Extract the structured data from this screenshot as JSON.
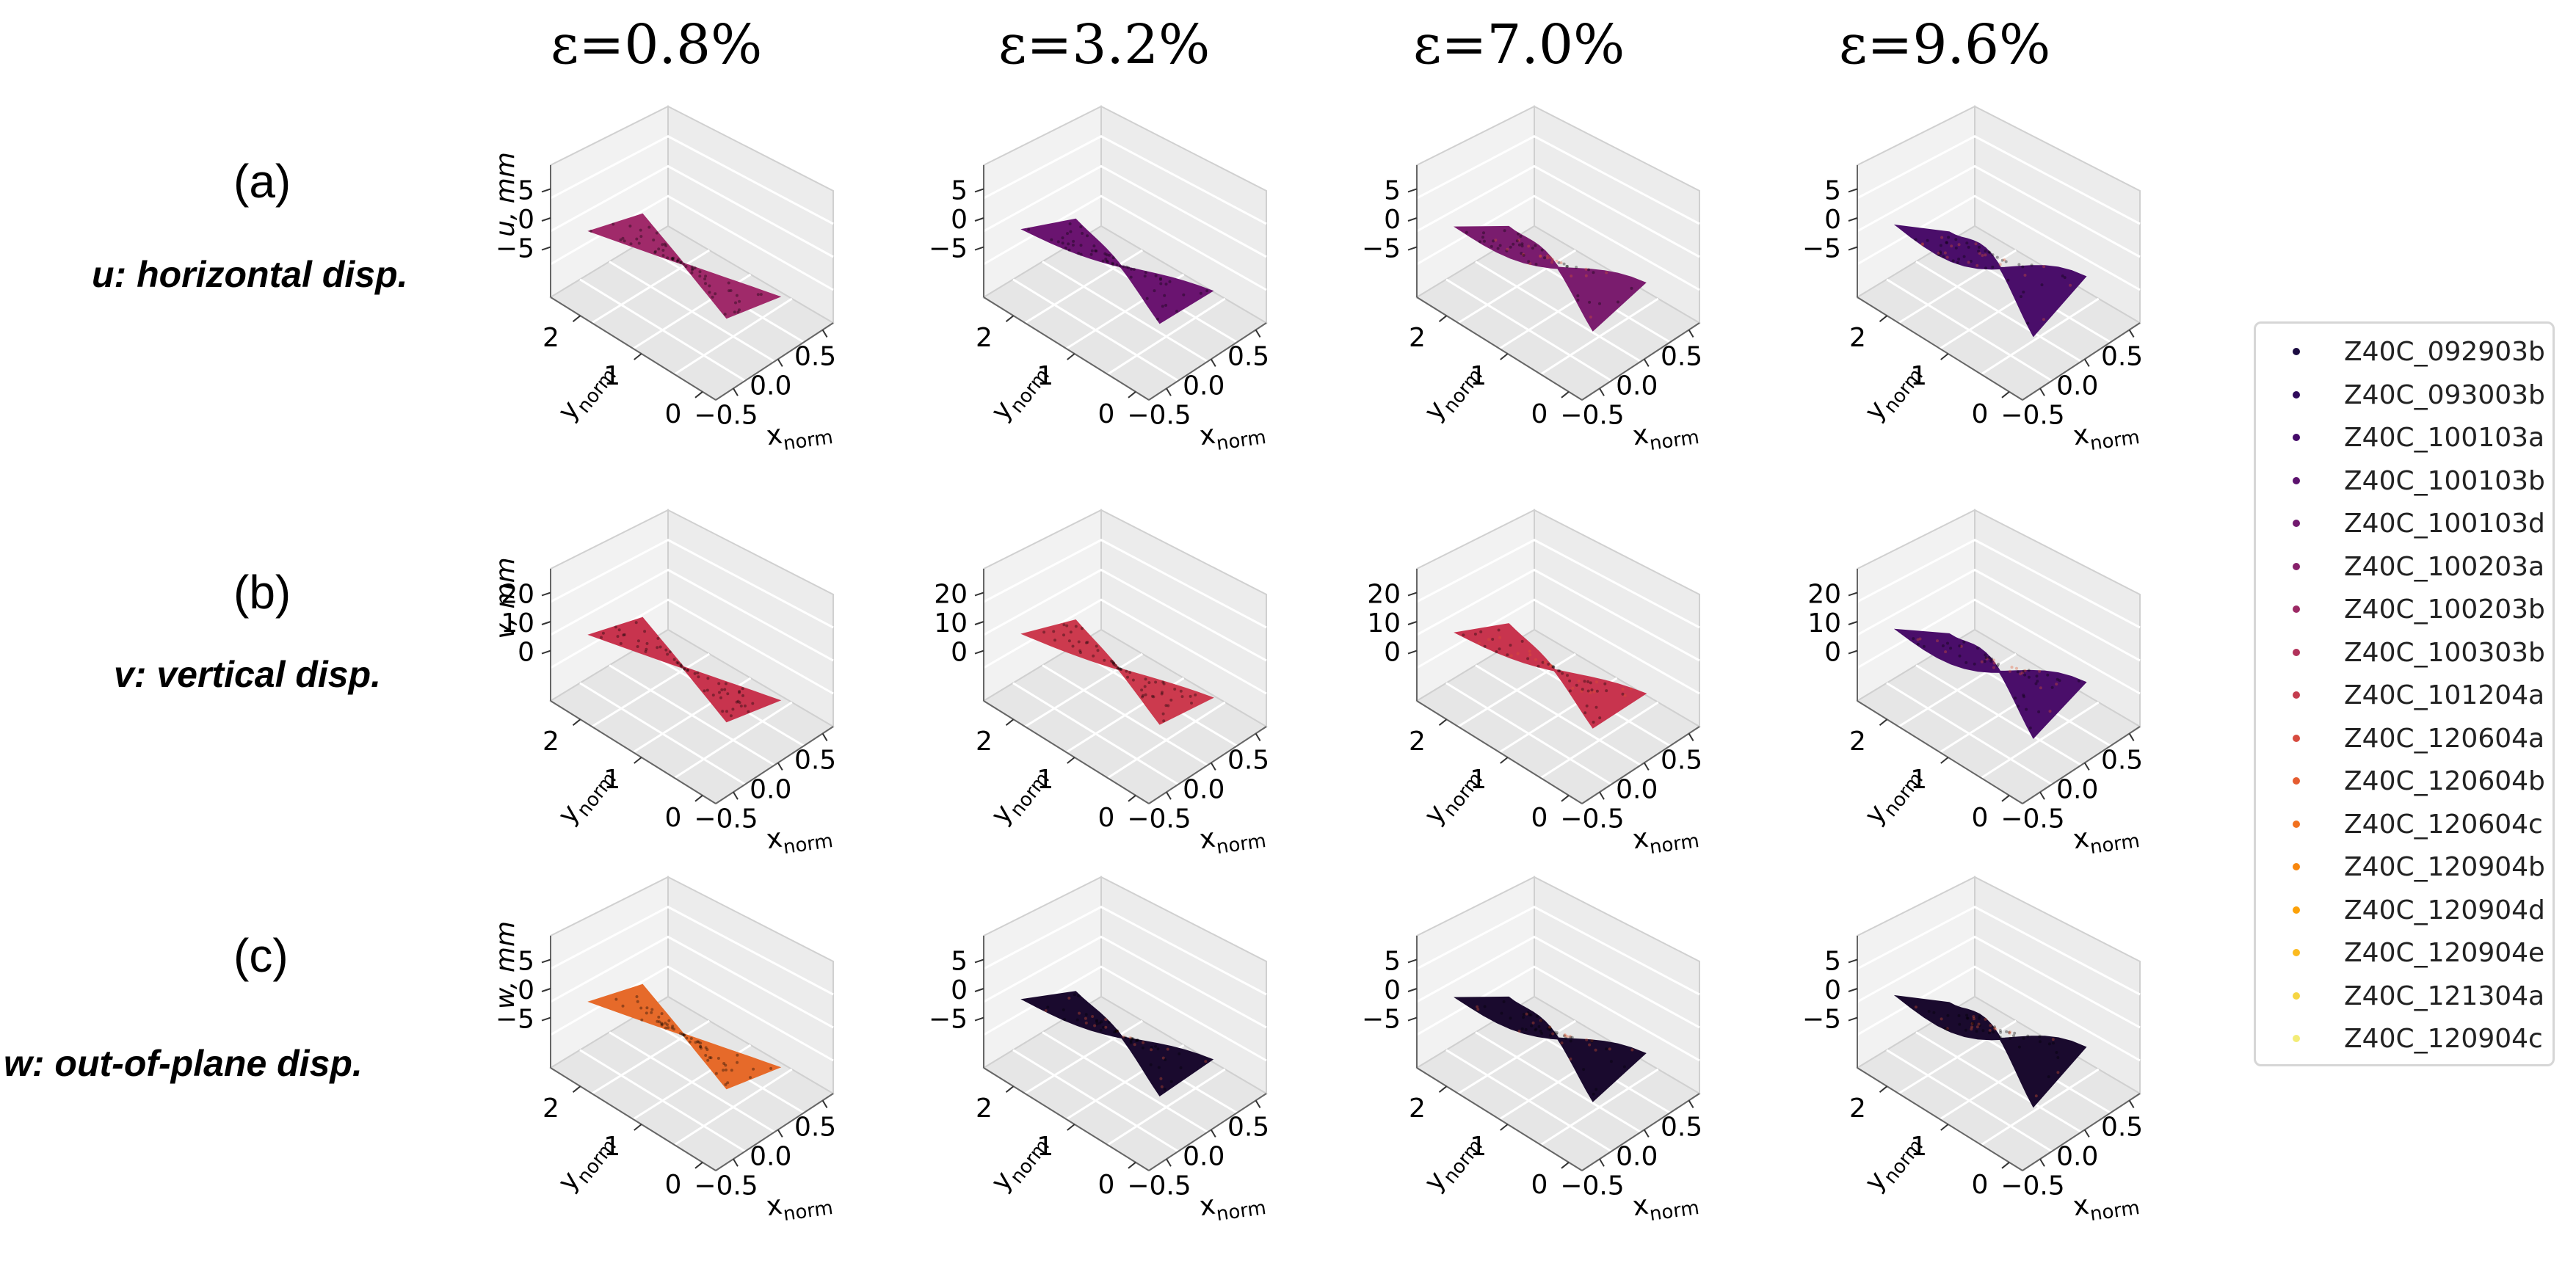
{
  "chart_data": {
    "type": "scatter",
    "title": "",
    "column_titles": [
      "ε=0.8%",
      "ε=3.2%",
      "ε=7.0%",
      "ε=9.6%"
    ],
    "strain_percent": [
      0.8,
      3.2,
      7.0,
      9.6
    ],
    "rows": [
      {
        "letter": "(a)",
        "description": "u: horizontal disp.",
        "zlabel": "u, mm",
        "zticks": [
          "5",
          "0",
          "−5"
        ],
        "zlim": [
          -7,
          7
        ]
      },
      {
        "letter": "(b)",
        "description": "v: vertical disp.",
        "zlabel": "v, mm",
        "zticks": [
          "20",
          "10",
          "0"
        ],
        "zlim": [
          -2,
          22
        ]
      },
      {
        "letter": "(c)",
        "description": "w: out-of-plane disp.",
        "zlabel": "w, mm",
        "zticks": [
          "5",
          "0",
          "−5"
        ],
        "zlim": [
          -7,
          7
        ]
      }
    ],
    "xlabel": "x",
    "xlabel_sub": "norm",
    "xticks": [
      "−0.5",
      "0.0",
      "0.5"
    ],
    "xlim": [
      -0.6,
      0.6
    ],
    "ylabel": "y",
    "ylabel_sub": "norm",
    "yticks": [
      "0",
      "1",
      "2"
    ],
    "ylim": [
      0,
      2.6
    ],
    "legend_position": "right",
    "series": [
      {
        "name": "Z40C_092903b",
        "color": "#1b0c41"
      },
      {
        "name": "Z40C_093003b",
        "color": "#2f0a5b"
      },
      {
        "name": "Z40C_100103a",
        "color": "#450a69"
      },
      {
        "name": "Z40C_100103b",
        "color": "#5c126e"
      },
      {
        "name": "Z40C_100103d",
        "color": "#71196e"
      },
      {
        "name": "Z40C_100203a",
        "color": "#87216b"
      },
      {
        "name": "Z40C_100203b",
        "color": "#9c2964"
      },
      {
        "name": "Z40C_100303b",
        "color": "#b1325a"
      },
      {
        "name": "Z40C_101204a",
        "color": "#c43c4e"
      },
      {
        "name": "Z40C_120604a",
        "color": "#d74b3f"
      },
      {
        "name": "Z40C_120604b",
        "color": "#e55c30"
      },
      {
        "name": "Z40C_120604c",
        "color": "#f1711f"
      },
      {
        "name": "Z40C_120904b",
        "color": "#f8870e"
      },
      {
        "name": "Z40C_120904d",
        "color": "#fca108"
      },
      {
        "name": "Z40C_120904e",
        "color": "#fbba1f"
      },
      {
        "name": "Z40C_121304a",
        "color": "#f6d543"
      },
      {
        "name": "Z40C_120904c",
        "color": "#f3ec76"
      }
    ],
    "surface_colors": [
      [
        "#a02a6a",
        "#6a1470",
        "#7a1c6e",
        "#4a0e6a"
      ],
      [
        "#c8344e",
        "#cc3a4e",
        "#c8344e",
        "#4a0e6a"
      ],
      [
        "#e66a2a",
        "#1a0a2e",
        "#1a0a2e",
        "#1a0a2e"
      ]
    ],
    "surface_deformation": [
      [
        0.02,
        0.3,
        0.7,
        1.0
      ],
      [
        0.02,
        0.15,
        0.35,
        0.9
      ],
      [
        0.02,
        0.4,
        0.7,
        1.0
      ]
    ]
  }
}
